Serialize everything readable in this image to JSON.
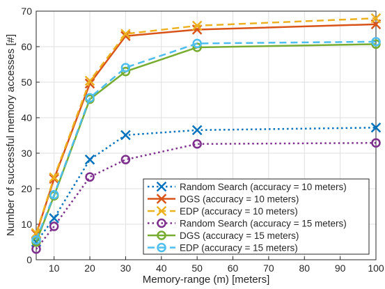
{
  "chart_data": {
    "type": "line",
    "xlabel": "Memory-range (m) [meters]",
    "ylabel": "Number of successful memory accesses [#]",
    "xlim": [
      5,
      100
    ],
    "ylim": [
      0,
      70
    ],
    "xticks": [
      10,
      20,
      30,
      40,
      50,
      60,
      70,
      80,
      90,
      100
    ],
    "yticks": [
      0,
      10,
      20,
      30,
      40,
      50,
      60,
      70
    ],
    "grid": true,
    "legend_position": "bottom-right",
    "x": [
      5,
      10,
      20,
      30,
      50,
      100
    ],
    "series": [
      {
        "name": "Random Search (accuracy = 10 meters)",
        "values": [
          5.0,
          11.7,
          28.2,
          35.1,
          36.5,
          37.2
        ],
        "color": "#0072BD",
        "line": "dotted",
        "marker": "x"
      },
      {
        "name": "DGS (accuracy = 10 meters)",
        "values": [
          7.2,
          22.8,
          49.6,
          63.0,
          64.8,
          66.3
        ],
        "color": "#D95319",
        "line": "solid",
        "marker": "x"
      },
      {
        "name": "EDP (accuracy = 10 meters)",
        "values": [
          7.5,
          23.2,
          50.4,
          63.6,
          65.9,
          68.0
        ],
        "color": "#EDB120",
        "line": "dashed",
        "marker": "x"
      },
      {
        "name": "Random Search (accuracy = 15 meters)",
        "values": [
          3.0,
          9.4,
          23.3,
          28.2,
          32.6,
          32.9
        ],
        "color": "#7E2F8E",
        "line": "dotted",
        "marker": "o"
      },
      {
        "name": "DGS (accuracy = 15 meters)",
        "values": [
          5.0,
          18.0,
          45.2,
          53.0,
          59.8,
          60.7
        ],
        "color": "#77AC30",
        "line": "solid",
        "marker": "o"
      },
      {
        "name": "EDP (accuracy = 15 meters)",
        "values": [
          5.6,
          18.3,
          45.6,
          54.1,
          60.9,
          61.4
        ],
        "color": "#4DBEEE",
        "line": "dashed",
        "marker": "o"
      }
    ]
  }
}
